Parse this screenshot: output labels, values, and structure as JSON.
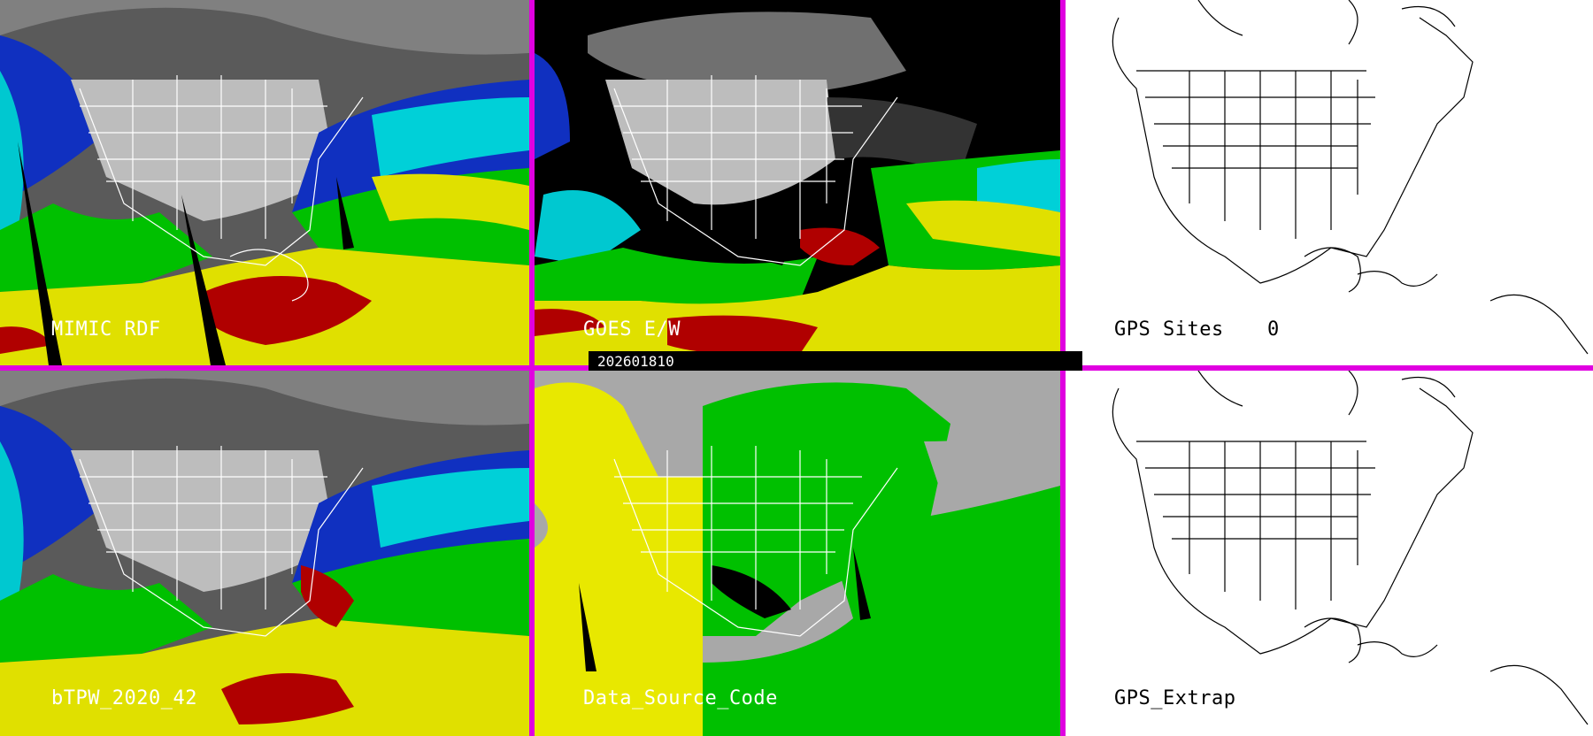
{
  "panels": {
    "mimic_rdf": {
      "label": "MIMIC RDF"
    },
    "goes_ew": {
      "label": "GOES E/W"
    },
    "gps_sites": {
      "label": "GPS Sites",
      "count": "0"
    },
    "btpw_2020_42": {
      "label": "bTPW_2020_42"
    },
    "data_source_code": {
      "label": "Data_Source_Code"
    },
    "gps_extrap": {
      "label": "GPS_Extrap"
    }
  },
  "timestamp": "202601810",
  "colors": {
    "separator": "#e000e0",
    "low_moisture": "#a8a8a8",
    "mid_moisture": "#00c000",
    "high_moisture": "#e8e800",
    "very_high_moisture": "#b00000",
    "water_blue": "#1030c0",
    "cyan": "#00e0e0"
  }
}
